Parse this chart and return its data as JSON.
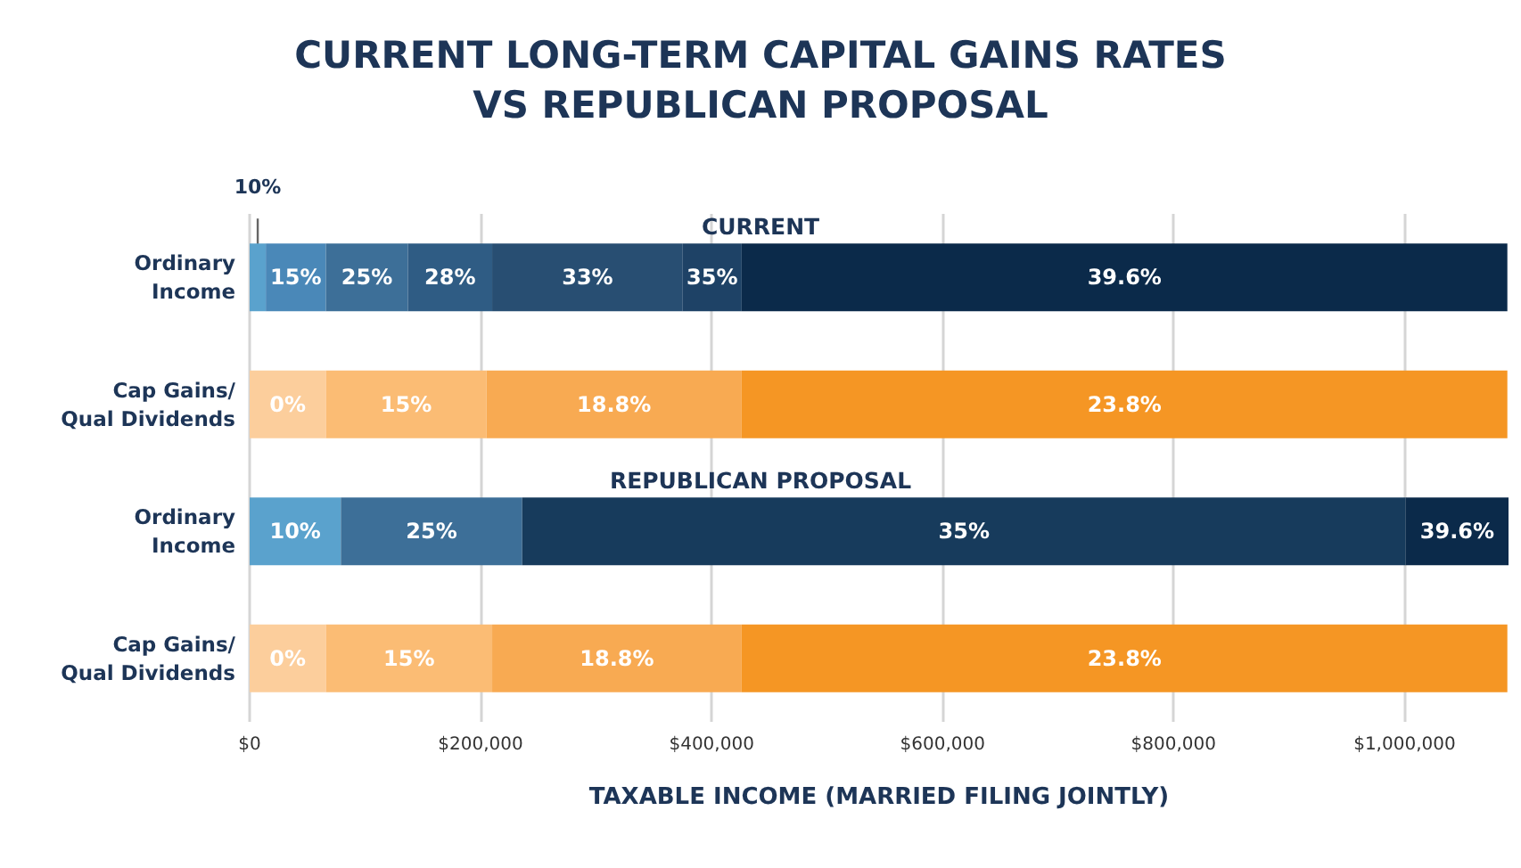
{
  "chart_data": {
    "type": "bar",
    "orientation": "horizontal",
    "stacked": true,
    "title": "CURRENT LONG-TERM CAPITAL GAINS RATES\nVS REPUBLICAN PROPOSAL",
    "xlabel": "TAXABLE INCOME (MARRIED FILING JOINTLY)",
    "annotations": [
      "CURRENT",
      "REPUBLICAN PROPOSAL"
    ],
    "categories": [
      "Ordinary Income",
      "Cap Gains/ Qual Dividends",
      "Ordinary Income",
      "Cap Gains/ Qual Dividends"
    ],
    "series": [
      {
        "name": "10%",
        "color": "#5aa2cd",
        "values": [
          14000,
          null,
          79000,
          null
        ]
      },
      {
        "name": "15%",
        "color": "#4a88b8",
        "values": [
          52000,
          null,
          null,
          null
        ]
      },
      {
        "name": "25%",
        "color": "#3d6f98",
        "values": [
          71000,
          null,
          157000,
          null
        ]
      },
      {
        "name": "28%",
        "color": "#2f5c84",
        "values": [
          73000,
          null,
          null,
          null
        ]
      },
      {
        "name": "33%",
        "color": "#284e72",
        "values": [
          165000,
          null,
          null,
          null
        ]
      },
      {
        "name": "35%",
        "colors": [
          "#1e4266",
          null,
          "#173b5c",
          null
        ],
        "values": [
          51000,
          null,
          765000,
          null
        ]
      },
      {
        "name": "39.6%",
        "color": "#0b2a4a",
        "values": [
          663000,
          null,
          89000,
          null
        ]
      },
      {
        "name": "0%",
        "color": "#fcce9c",
        "values": [
          null,
          66000,
          null,
          66000
        ]
      },
      {
        "name": "15%",
        "color": "#fbbc74",
        "values": [
          null,
          139000,
          null,
          144000
        ]
      },
      {
        "name": "18.8%",
        "color": "#f8aa52",
        "values": [
          null,
          221000,
          null,
          216000
        ]
      },
      {
        "name": "23.8%",
        "color": "#f59624",
        "values": [
          null,
          663000,
          null,
          663000
        ]
      }
    ],
    "xlim": [
      0,
      1090000
    ],
    "xticks": [
      {
        "value": 0,
        "label": "$0"
      },
      {
        "value": 200000,
        "label": "$200,000"
      },
      {
        "value": 400000,
        "label": "$400,000"
      },
      {
        "value": 600000,
        "label": "$600,000"
      },
      {
        "value": 800000,
        "label": "$800,000"
      },
      {
        "value": 1000000,
        "label": "$1,000,000"
      }
    ],
    "grid": "x"
  }
}
